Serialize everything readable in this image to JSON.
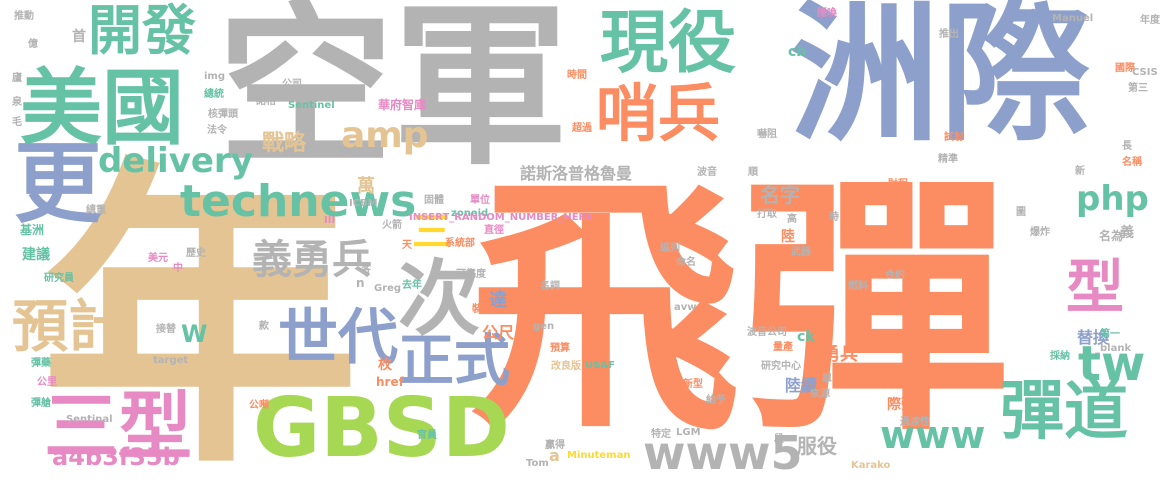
{
  "cloud": {
    "palette": {
      "orange": "#fc8d62",
      "grey": "#b3b3b3",
      "blue": "#8da0cb",
      "green": "#66c2a5",
      "tan": "#e5c494",
      "lime": "#a6d854",
      "pink": "#e78ac3",
      "yellow": "#ffd92f"
    },
    "words": [
      {
        "name": "word-fei-dan",
        "text": "飛彈"
      },
      {
        "name": "word-nian",
        "text": "年"
      },
      {
        "name": "word-kong-jun",
        "text": "空軍"
      },
      {
        "name": "word-zhou-ji",
        "text": "洲際"
      },
      {
        "name": "word-mei-guo",
        "text": "美國"
      },
      {
        "name": "word-gbsd",
        "text": "GBSD"
      },
      {
        "name": "word-xian-yi",
        "text": "現役"
      },
      {
        "name": "word-shao-bing",
        "text": "哨兵"
      },
      {
        "name": "word-kai-fa",
        "text": "開發"
      },
      {
        "name": "word-geng",
        "text": "更"
      },
      {
        "name": "word-technews",
        "text": "technews"
      },
      {
        "name": "word-delivery",
        "text": "delivery"
      },
      {
        "name": "word-amp",
        "text": "amp"
      },
      {
        "name": "word-ci",
        "text": "次"
      },
      {
        "name": "word-yi-yong-bing",
        "text": "義勇兵"
      },
      {
        "name": "word-shi-dai",
        "text": "世代"
      },
      {
        "name": "word-zheng-shi",
        "text": "正式"
      },
      {
        "name": "word-yu-ji",
        "text": "預計"
      },
      {
        "name": "word-san-xing",
        "text": "三型"
      },
      {
        "name": "word-xing",
        "text": "型"
      },
      {
        "name": "word-dan-dao",
        "text": "彈道"
      },
      {
        "name": "word-www5",
        "text": "www5"
      },
      {
        "name": "word-www",
        "text": "www"
      },
      {
        "name": "word-tw",
        "text": "tw"
      },
      {
        "name": "word-php",
        "text": "php"
      },
      {
        "name": "word-san",
        "text": "三"
      },
      {
        "name": "word-a4b3f35b",
        "text": "a4b3f35b"
      },
      {
        "name": "word-nuoshiluopu",
        "text": "諾斯洛普格魯曼"
      },
      {
        "name": "word-zhan-lue",
        "text": "戰略"
      },
      {
        "name": "word-wan",
        "text": "萬"
      },
      {
        "name": "word-ming-zi",
        "text": "名字"
      },
      {
        "name": "word-fu-yi",
        "text": "服役"
      },
      {
        "name": "word-yong-bing",
        "text": "勇兵"
      },
      {
        "name": "word-lu-xu",
        "text": "陸續"
      },
      {
        "name": "word-ti-huan",
        "text": "替換"
      },
      {
        "name": "word-gong-chi",
        "text": "公尺"
      },
      {
        "name": "word-da",
        "text": "達"
      },
      {
        "name": "word-ji-dan-dao",
        "text": "際彈道"
      },
      {
        "name": "word-w",
        "text": "W"
      },
      {
        "name": "word-ck",
        "text": "ck"
      },
      {
        "name": "word-cb",
        "text": "cb"
      },
      {
        "name": "word-zoneid",
        "text": "zoneid"
      },
      {
        "name": "word-insert-random",
        "text": "INSERT_RANDOM_NUMBER_HERE"
      },
      {
        "name": "word-hua-fu-zhi-ku",
        "text": "華府智庫"
      },
      {
        "name": "word-jian-yi",
        "text": "建議"
      },
      {
        "name": "word-ji-zhou",
        "text": "基洲"
      },
      {
        "name": "word-gu-ti",
        "text": "固體"
      },
      {
        "name": "word-dan-wei",
        "text": "單位"
      },
      {
        "name": "word-sentinel",
        "text": "Sentinel"
      },
      {
        "name": "word-icbm",
        "text": "ICBM"
      },
      {
        "name": "word-zong-zhong",
        "text": "總重"
      },
      {
        "name": "word-tui-dong",
        "text": "推動"
      },
      {
        "name": "word-mei-yuan",
        "text": "美元"
      },
      {
        "name": "word-li-shi",
        "text": "歷史"
      },
      {
        "name": "word-zhong",
        "text": "中"
      },
      {
        "name": "word-yan-jiu-yuan",
        "text": "研究員"
      },
      {
        "name": "word-yi",
        "text": "億"
      },
      {
        "name": "word-ri",
        "text": "日"
      },
      {
        "name": "word-gong-si",
        "text": "公司"
      },
      {
        "name": "word-img",
        "text": "img"
      },
      {
        "name": "word-zong-tong",
        "text": "總統"
      },
      {
        "name": "word-he-dan-tou",
        "text": "核彈頭"
      },
      {
        "name": "word-fa-ling",
        "text": "法令"
      },
      {
        "name": "word-nuo-ge",
        "text": "諾格"
      },
      {
        "name": "word-shou",
        "text": "首"
      },
      {
        "name": "word-fu-jing-li",
        "text": "副經理"
      },
      {
        "name": "word-xi-tong-bu",
        "text": "系統部"
      },
      {
        "name": "word-zhi-jing",
        "text": "直徑"
      },
      {
        "name": "word-tian",
        "text": "天"
      },
      {
        "name": "word-huo-jian",
        "text": "火箭"
      },
      {
        "name": "word-qu-nian",
        "text": "去年"
      },
      {
        "name": "word-ke-kao-du",
        "text": "可靠度"
      },
      {
        "name": "word-zhuang-bei",
        "text": "裝備"
      },
      {
        "name": "word-ming-cheng",
        "text": "名詞"
      },
      {
        "name": "word-yu-suan",
        "text": "預算"
      },
      {
        "name": "word-gai-liang-ban",
        "text": "改良版"
      },
      {
        "name": "word-usaf",
        "text": "USAF"
      },
      {
        "name": "word-liang",
        "text": "兩"
      },
      {
        "name": "word-src",
        "text": "src"
      },
      {
        "name": "word-minuteman",
        "text": "Minuteman"
      },
      {
        "name": "word-lgm",
        "text": "LGM"
      },
      {
        "name": "word-te-ding",
        "text": "特定"
      },
      {
        "name": "word-zhan-de",
        "text": "贏得"
      },
      {
        "name": "word-tom",
        "text": "Tom"
      },
      {
        "name": "word-a",
        "text": "a"
      },
      {
        "name": "word-bo-yin-gong-si",
        "text": "波音公司"
      },
      {
        "name": "word-liang-chan",
        "text": "量產"
      },
      {
        "name": "word-yan-jiu-zhong-xin",
        "text": "研究中心"
      },
      {
        "name": "word-xin-xing",
        "text": "新型"
      },
      {
        "name": "word-gei-yu",
        "text": "給予"
      },
      {
        "name": "word-guo-du-xing",
        "text": "過渡性"
      },
      {
        "name": "word-lai-yuan",
        "text": "來源"
      },
      {
        "name": "word-dan",
        "text": "單"
      },
      {
        "name": "word-karako",
        "text": "Karako"
      },
      {
        "name": "word-duan",
        "text": "段"
      },
      {
        "name": "word-cai-na",
        "text": "採納"
      },
      {
        "name": "word-blank",
        "text": "_blank"
      },
      {
        "name": "word-di-yi",
        "text": "第一"
      },
      {
        "name": "word-ran-liao",
        "text": "燃料"
      },
      {
        "name": "word-he-yue",
        "text": "合約"
      },
      {
        "name": "word-wu-qi",
        "text": "武器"
      },
      {
        "name": "word-ming-wei",
        "text": "名為"
      },
      {
        "name": "word-yi-small",
        "text": "義"
      },
      {
        "name": "word-tu",
        "text": "圖"
      },
      {
        "name": "word-bao-zha",
        "text": "爆炸"
      },
      {
        "name": "word-cai-cheng",
        "text": "財程"
      },
      {
        "name": "word-xin",
        "text": "新"
      },
      {
        "name": "word-zhang",
        "text": "長"
      },
      {
        "name": "word-ming-cheng-2",
        "text": "名稱"
      },
      {
        "name": "word-jing-zhun",
        "text": "精準"
      },
      {
        "name": "word-shi-she",
        "text": "試射"
      },
      {
        "name": "word-guo-ji",
        "text": "國際"
      },
      {
        "name": "word-csis",
        "text": "CSIS"
      },
      {
        "name": "word-di-san",
        "text": "第三"
      },
      {
        "name": "word-nian-du",
        "text": "年度"
      },
      {
        "name": "word-manuel",
        "text": "Manuel"
      },
      {
        "name": "word-tui-chu",
        "text": "推出"
      },
      {
        "name": "word-shi-jian",
        "text": "時間"
      },
      {
        "name": "word-chao-guo",
        "text": "超過"
      },
      {
        "name": "word-zu-zu",
        "text": "嚇阻"
      },
      {
        "name": "word-bo-yin",
        "text": "波音"
      },
      {
        "name": "word-shun",
        "text": "順"
      },
      {
        "name": "word-shi",
        "text": "時"
      },
      {
        "name": "word-da-qu",
        "text": "打取"
      },
      {
        "name": "word-gao",
        "text": "高"
      },
      {
        "name": "word-lu",
        "text": "陸"
      },
      {
        "name": "word-bian-lie",
        "text": "編列"
      },
      {
        "name": "word-ming-ming",
        "text": "命名"
      },
      {
        "name": "word-avw",
        "text": "avw"
      },
      {
        "name": "word-jie-ti",
        "text": "接替"
      },
      {
        "name": "word-target",
        "text": "target"
      },
      {
        "name": "word-kuan",
        "text": "款"
      },
      {
        "name": "word-gen",
        "text": "gen"
      },
      {
        "name": "word-dan-yao",
        "text": "彈藥"
      },
      {
        "name": "word-gong-li",
        "text": "公里"
      },
      {
        "name": "word-dan-cang",
        "text": "彈艙"
      },
      {
        "name": "word-sentinal",
        "text": "Sentinal"
      },
      {
        "name": "word-gong-li-2",
        "text": "公噸"
      },
      {
        "name": "word-guan-liang",
        "text": "官員"
      },
      {
        "name": "word-greg",
        "text": "Greg"
      },
      {
        "name": "word-n",
        "text": "n"
      },
      {
        "name": "word-ke",
        "text": "客"
      },
      {
        "name": "word-href",
        "text": "href"
      },
      {
        "name": "word-mei",
        "text": "枚"
      },
      {
        "name": "word-iii",
        "text": "III"
      },
      {
        "name": "word-hu-yue",
        "text": "隱喚"
      },
      {
        "name": "word-lu-2",
        "text": "廬"
      },
      {
        "name": "word-quan",
        "text": "泉"
      },
      {
        "name": "word-mao",
        "text": "毛"
      }
    ]
  }
}
